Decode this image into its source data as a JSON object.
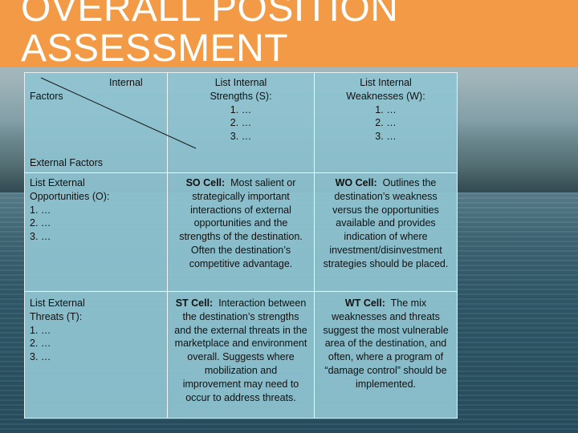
{
  "slide": {
    "title_line1": "OVERALL POSITION",
    "title_line2": "ASSESSMENT"
  },
  "matrix": {
    "corner": {
      "internal_label": "Internal",
      "factors_label": "Factors",
      "external_factors_label": "External Factors"
    },
    "strengths_header": {
      "line1": "List Internal",
      "line2": "Strengths (S):",
      "items": [
        "1. …",
        "2. …",
        "3. …"
      ]
    },
    "weaknesses_header": {
      "line1": "List Internal",
      "line2": "Weaknesses (W):",
      "items": [
        "1. …",
        "2. …",
        "3. …"
      ]
    },
    "opportunities_header": {
      "line1": "List External",
      "line2": "Opportunities (O):",
      "items": [
        "1. …",
        "2. …",
        "3. …"
      ]
    },
    "threats_header": {
      "line1": "List External",
      "line2": "Threats (T):",
      "items": [
        "1. …",
        "2. …",
        "3. …"
      ]
    },
    "so_cell": {
      "label": "SO Cell:",
      "text": "Most salient or strategically important interactions of external opportunities and the strengths of the destination.  Often the destination’s competitive advantage."
    },
    "wo_cell": {
      "label": "WO Cell:",
      "text": "Outlines the destination’s weakness versus the opportunities available and provides indication of where investment/disinvestment strategies should be placed."
    },
    "st_cell": {
      "label": "ST Cell:",
      "text": "Interaction between the destination’s strengths and the external threats in the marketplace and environment overall.  Suggests where mobilization and improvement may need to occur to address threats."
    },
    "wt_cell": {
      "label": "WT Cell:",
      "text": "The mix weaknesses and threats suggest the most vulnerable area of the destination, and often, where a program of “damage control” should be implemented."
    }
  }
}
